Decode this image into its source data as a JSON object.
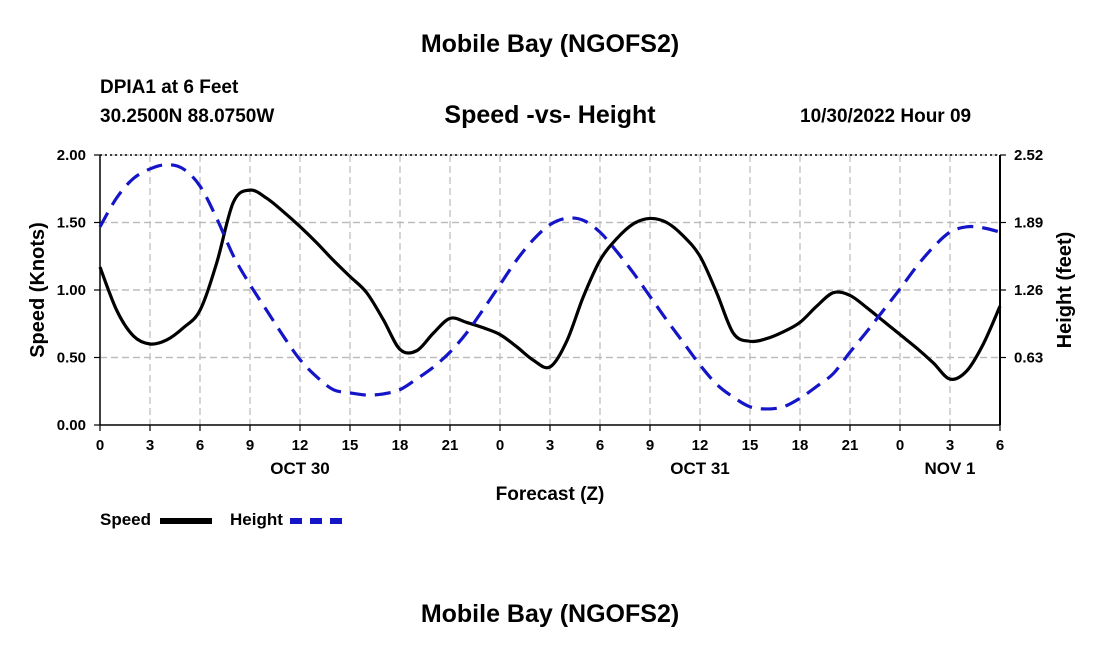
{
  "header": {
    "title": "Mobile Bay (NGOFS2)",
    "station": "DPIA1 at 6 Feet",
    "coords": "30.2500N  88.0750W",
    "subtitle": "Speed -vs- Height",
    "timestamp": "10/30/2022 Hour 09"
  },
  "footer": {
    "title": "Mobile Bay (NGOFS2)"
  },
  "legend": {
    "speed_label": "Speed",
    "height_label": "Height"
  },
  "colors": {
    "speed": "#000000",
    "height": "#1515c8",
    "grid": "#bbbbbb"
  },
  "chart_data": {
    "type": "line",
    "xlabel": "Forecast (Z)",
    "ylabel_left": "Speed (Knots)",
    "ylabel_right": "Height (feet)",
    "x_range": [
      0,
      54
    ],
    "x_ticks": [
      0,
      3,
      6,
      9,
      12,
      15,
      18,
      21,
      24,
      27,
      30,
      33,
      36,
      39,
      42,
      45,
      48,
      51,
      54
    ],
    "x_tick_labels": [
      "0",
      "3",
      "6",
      "9",
      "12",
      "15",
      "18",
      "21",
      "0",
      "3",
      "6",
      "9",
      "12",
      "15",
      "18",
      "21",
      "0",
      "3",
      "6"
    ],
    "date_labels": [
      {
        "x": 12,
        "label": "OCT 30"
      },
      {
        "x": 36,
        "label": "OCT 31"
      },
      {
        "x": 51,
        "label": "NOV 1"
      }
    ],
    "y_left": {
      "range": [
        0,
        2
      ],
      "ticks": [
        0,
        0.5,
        1,
        1.5,
        2
      ],
      "tick_labels": [
        "0.00",
        "0.50",
        "1.00",
        "1.50",
        "2.00"
      ]
    },
    "y_right": {
      "range": [
        0,
        2.52
      ],
      "ticks": [
        0.63,
        1.26,
        1.89,
        2.52
      ],
      "tick_labels": [
        "0.63",
        "1.26",
        "1.89",
        "2.52"
      ]
    },
    "series": [
      {
        "name": "Speed",
        "axis": "left",
        "style": "solid",
        "x": [
          0,
          1,
          2,
          3,
          4,
          5,
          6,
          7,
          8,
          9,
          10,
          11,
          12,
          13,
          14,
          15,
          16,
          17,
          18,
          19,
          20,
          21,
          22,
          23,
          24,
          25,
          26,
          27,
          28,
          29,
          30,
          31,
          32,
          33,
          34,
          35,
          36,
          37,
          38,
          39,
          40,
          41,
          42,
          43,
          44,
          45,
          46,
          47,
          48,
          49,
          50,
          51,
          52,
          53,
          54
        ],
        "values": [
          1.17,
          0.85,
          0.66,
          0.6,
          0.63,
          0.72,
          0.85,
          1.2,
          1.65,
          1.74,
          1.68,
          1.58,
          1.47,
          1.35,
          1.22,
          1.1,
          0.98,
          0.78,
          0.56,
          0.55,
          0.68,
          0.79,
          0.76,
          0.72,
          0.67,
          0.58,
          0.48,
          0.43,
          0.62,
          0.95,
          1.22,
          1.38,
          1.49,
          1.53,
          1.5,
          1.4,
          1.25,
          0.98,
          0.68,
          0.62,
          0.64,
          0.69,
          0.76,
          0.88,
          0.98,
          0.96,
          0.87,
          0.77,
          0.67,
          0.57,
          0.46,
          0.34,
          0.4,
          0.6,
          0.88
        ]
      },
      {
        "name": "Height",
        "axis": "right",
        "style": "dashed",
        "x": [
          0,
          1,
          2,
          3,
          4,
          5,
          6,
          7,
          8,
          9,
          10,
          11,
          12,
          13,
          14,
          15,
          16,
          17,
          18,
          19,
          20,
          21,
          22,
          23,
          24,
          25,
          26,
          27,
          28,
          29,
          30,
          31,
          32,
          33,
          34,
          35,
          36,
          37,
          38,
          39,
          40,
          41,
          42,
          43,
          44,
          45,
          46,
          47,
          48,
          49,
          50,
          51,
          52,
          53,
          54
        ],
        "values": [
          1.85,
          2.12,
          2.3,
          2.39,
          2.43,
          2.39,
          2.23,
          1.93,
          1.58,
          1.31,
          1.07,
          0.83,
          0.61,
          0.45,
          0.33,
          0.3,
          0.28,
          0.29,
          0.33,
          0.43,
          0.54,
          0.68,
          0.86,
          1.08,
          1.31,
          1.54,
          1.73,
          1.87,
          1.93,
          1.91,
          1.8,
          1.62,
          1.42,
          1.2,
          0.98,
          0.77,
          0.56,
          0.38,
          0.26,
          0.17,
          0.15,
          0.17,
          0.25,
          0.36,
          0.48,
          0.68,
          0.87,
          1.07,
          1.27,
          1.48,
          1.66,
          1.8,
          1.85,
          1.84,
          1.8
        ]
      }
    ]
  }
}
